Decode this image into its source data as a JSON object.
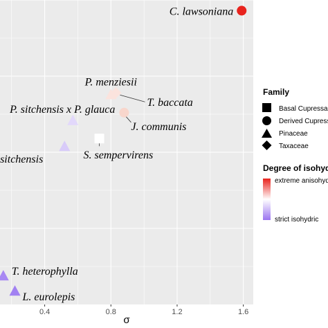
{
  "chart_data": {
    "type": "scatter",
    "xlabel": "σ",
    "ylabel": "",
    "xlim": [
      0.13,
      1.66
    ],
    "ylim": [
      0,
      1
    ],
    "x_ticks": [
      0.4,
      0.8,
      1.2,
      1.6
    ],
    "x_tick_labels": [
      "0.4",
      "0.8",
      "1.2",
      "1.6"
    ],
    "grid": true,
    "legend_placement": "right",
    "colors": {
      "panel": "#ebebeb",
      "grid": "#ffffff",
      "extreme": "#e8231d",
      "mid": "#ffffff",
      "strict": "#9b74f0"
    },
    "points": [
      {
        "label": "C. lawsoniana",
        "family": "Derived Cupressaceae",
        "x": 1.59,
        "y": 0.965,
        "color": "#e8231d"
      },
      {
        "label": "P. menziesii",
        "family": "Pinaceae",
        "x": 0.8,
        "y": 0.69,
        "color": "#fbe3dd"
      },
      {
        "label": "T. baccata",
        "family": "Taxaceae",
        "x": 0.83,
        "y": 0.695,
        "color": "#fbe3dd"
      },
      {
        "label": "J. communis",
        "family": "Derived Cupressaceae",
        "x": 0.88,
        "y": 0.63,
        "color": "#f8d6cc"
      },
      {
        "label": "P. sitchensis x P. glauca",
        "family": "Pinaceae",
        "x": 0.57,
        "y": 0.605,
        "color": "#e2d8fb"
      },
      {
        "label": "S. sempervirens",
        "family": "Basal Cupressaceae",
        "x": 0.73,
        "y": 0.545,
        "color": "#ffffff"
      },
      {
        "label": "P. sitchensis",
        "family": "Pinaceae",
        "x": 0.52,
        "y": 0.52,
        "color": "#d8cbf9"
      },
      {
        "label": "T. heterophylla",
        "family": "Pinaceae",
        "x": 0.15,
        "y": 0.095,
        "color": "#a888f3"
      },
      {
        "label": "L. eurolepis",
        "family": "Pinaceae",
        "x": 0.22,
        "y": 0.045,
        "color": "#a181f2"
      }
    ]
  },
  "legend": {
    "family_title": "Family",
    "family_entries": [
      {
        "label": "Basal Cupressaceae",
        "shape": "square"
      },
      {
        "label": "Derived Cupressaceae",
        "shape": "circle"
      },
      {
        "label": "Pinaceae",
        "shape": "triangle"
      },
      {
        "label": "Taxaceae",
        "shape": "diamond"
      }
    ],
    "degree_title": "Degree of isohydry",
    "degree_top_label": "extreme anisohydric",
    "degree_bottom_label": "strict isohydric"
  }
}
